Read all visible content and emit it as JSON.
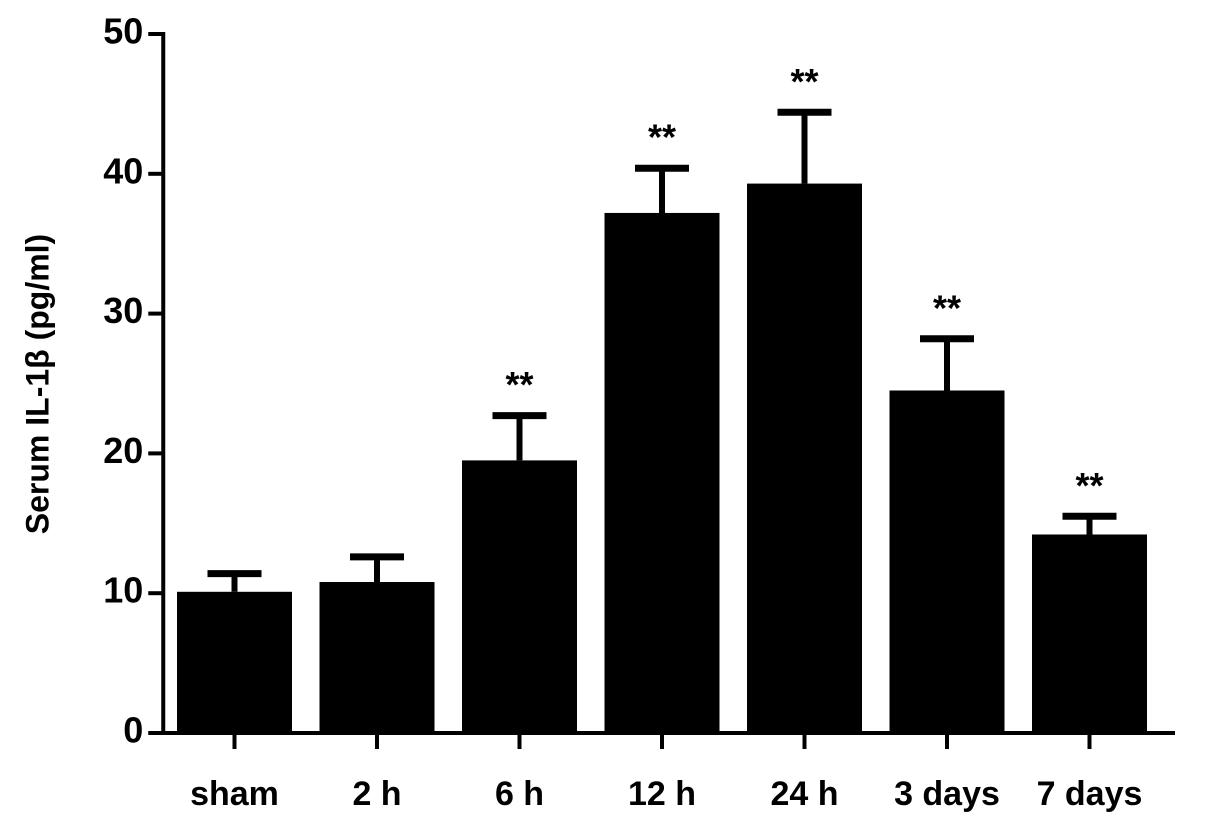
{
  "chart_data": {
    "type": "bar",
    "y_label": "Serum IL-1β (pg/ml)",
    "categories": [
      "sham",
      "2 h",
      "6 h",
      "12 h",
      "24 h",
      "3 days",
      "7 days"
    ],
    "values": [
      10.1,
      10.8,
      19.5,
      37.2,
      39.3,
      24.5,
      14.2
    ],
    "errors": [
      1.3,
      1.8,
      3.2,
      3.2,
      5.1,
      3.7,
      1.3
    ],
    "annotations": [
      null,
      null,
      "**",
      "**",
      "**",
      "**",
      "**"
    ],
    "color": "#000000",
    "ylim": [
      0,
      50
    ],
    "yticks": [
      0,
      10,
      20,
      30,
      40,
      50
    ]
  }
}
